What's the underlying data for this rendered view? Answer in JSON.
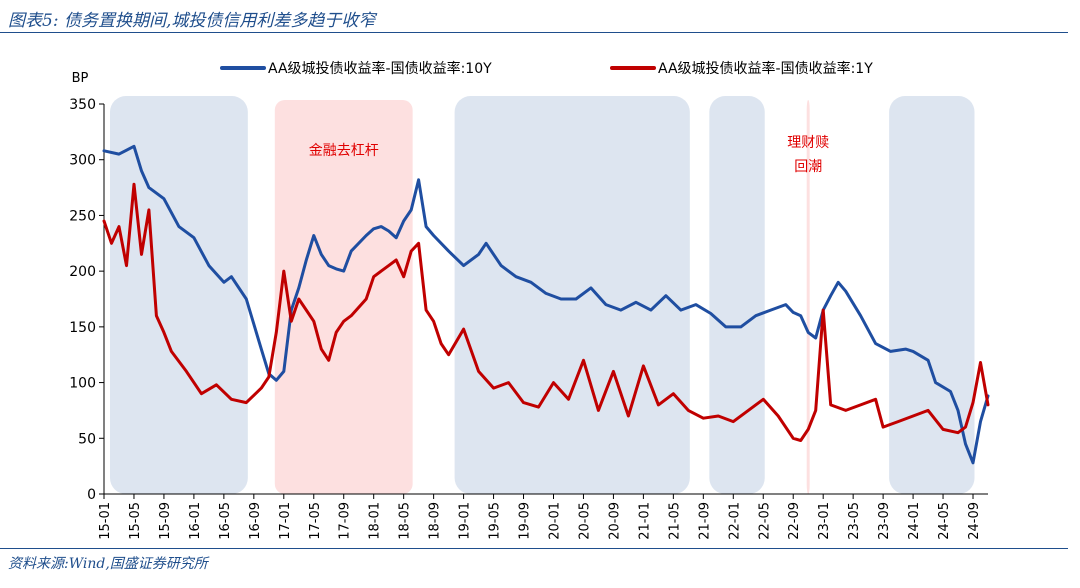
{
  "figure_title": "图表5: 债务置换期间,城投债信用利差多趋于收窄",
  "source": "资料来源:Wind,国盛证券研究所",
  "colors": {
    "series_10y": "#1f4ea1",
    "series_1y": "#c00000",
    "blue_band": "#dde5f0",
    "pink_band": "#fde0e0",
    "annotation": "#e00000",
    "rule": "#1f4e8c"
  },
  "chart_data": {
    "type": "line",
    "ylabel": "BP",
    "ylim": [
      0,
      350
    ],
    "yticks": [
      0,
      50,
      100,
      150,
      200,
      250,
      300,
      350
    ],
    "xlim": [
      "2015-01",
      "2024-11"
    ],
    "xticks": [
      "15-01",
      "15-05",
      "15-09",
      "16-01",
      "16-05",
      "16-09",
      "17-01",
      "17-05",
      "17-09",
      "18-01",
      "18-05",
      "18-09",
      "19-01",
      "19-05",
      "19-09",
      "20-01",
      "20-05",
      "20-09",
      "21-01",
      "21-05",
      "21-09",
      "22-01",
      "22-05",
      "22-09",
      "23-01",
      "23-05",
      "23-09",
      "24-01",
      "24-05",
      "24-09"
    ],
    "legend_position": "top",
    "shaded_periods": [
      {
        "start": "2015-01",
        "end": "2016-09",
        "color": "blue"
      },
      {
        "start": "2016-11",
        "end": "2018-07",
        "color": "pink",
        "label": "金融去杠杆"
      },
      {
        "start": "2018-11",
        "end": "2021-08",
        "color": "blue"
      },
      {
        "start": "2021-09",
        "end": "2022-06",
        "color": "blue"
      },
      {
        "start": "2022-10",
        "end": "2022-12",
        "color": "pink",
        "label": "理财赎回潮"
      },
      {
        "start": "2023-09",
        "end": "2024-10",
        "color": "blue"
      }
    ],
    "series": [
      {
        "name": "AA级城投债收益率-国债收益率:10Y",
        "color": "#1f4ea1",
        "x": [
          "2015-01",
          "2015-03",
          "2015-05",
          "2015-06",
          "2015-07",
          "2015-09",
          "2015-11",
          "2016-01",
          "2016-03",
          "2016-05",
          "2016-06",
          "2016-08",
          "2016-10",
          "2016-11",
          "2016-12",
          "2017-01",
          "2017-02",
          "2017-03",
          "2017-04",
          "2017-05",
          "2017-06",
          "2017-07",
          "2017-08",
          "2017-09",
          "2017-10",
          "2017-12",
          "2018-01",
          "2018-02",
          "2018-03",
          "2018-04",
          "2018-05",
          "2018-06",
          "2018-07",
          "2018-08",
          "2018-09",
          "2018-11",
          "2019-01",
          "2019-03",
          "2019-04",
          "2019-06",
          "2019-08",
          "2019-10",
          "2019-12",
          "2020-02",
          "2020-04",
          "2020-06",
          "2020-08",
          "2020-10",
          "2020-12",
          "2021-02",
          "2021-04",
          "2021-06",
          "2021-08",
          "2021-10",
          "2021-12",
          "2022-02",
          "2022-04",
          "2022-06",
          "2022-08",
          "2022-09",
          "2022-10",
          "2022-11",
          "2022-12",
          "2023-01",
          "2023-02",
          "2023-03",
          "2023-04",
          "2023-06",
          "2023-08",
          "2023-10",
          "2023-12",
          "2024-01",
          "2024-03",
          "2024-04",
          "2024-06",
          "2024-07",
          "2024-08",
          "2024-09",
          "2024-10",
          "2024-11"
        ],
        "values": [
          308,
          305,
          312,
          290,
          275,
          265,
          240,
          230,
          205,
          190,
          195,
          175,
          130,
          108,
          102,
          110,
          165,
          185,
          210,
          232,
          215,
          205,
          202,
          200,
          218,
          232,
          238,
          240,
          236,
          230,
          245,
          255,
          282,
          240,
          232,
          218,
          205,
          215,
          225,
          205,
          195,
          190,
          180,
          175,
          175,
          185,
          170,
          165,
          172,
          165,
          178,
          165,
          170,
          162,
          150,
          150,
          160,
          165,
          170,
          163,
          160,
          145,
          140,
          165,
          178,
          190,
          182,
          160,
          135,
          128,
          130,
          128,
          120,
          100,
          92,
          75,
          45,
          28,
          65,
          88
        ]
      },
      {
        "name": "AA级城投债收益率-国债收益率:1Y",
        "color": "#c00000",
        "x": [
          "2015-01",
          "2015-02",
          "2015-03",
          "2015-04",
          "2015-05",
          "2015-06",
          "2015-07",
          "2015-08",
          "2015-09",
          "2015-10",
          "2015-12",
          "2016-02",
          "2016-04",
          "2016-06",
          "2016-08",
          "2016-10",
          "2016-11",
          "2016-12",
          "2017-01",
          "2017-02",
          "2017-03",
          "2017-04",
          "2017-05",
          "2017-06",
          "2017-07",
          "2017-08",
          "2017-09",
          "2017-10",
          "2017-12",
          "2018-01",
          "2018-02",
          "2018-03",
          "2018-04",
          "2018-05",
          "2018-06",
          "2018-07",
          "2018-08",
          "2018-09",
          "2018-10",
          "2018-11",
          "2019-01",
          "2019-03",
          "2019-05",
          "2019-07",
          "2019-09",
          "2019-11",
          "2020-01",
          "2020-03",
          "2020-05",
          "2020-07",
          "2020-09",
          "2020-11",
          "2021-01",
          "2021-03",
          "2021-05",
          "2021-07",
          "2021-09",
          "2021-11",
          "2022-01",
          "2022-03",
          "2022-05",
          "2022-07",
          "2022-09",
          "2022-10",
          "2022-11",
          "2022-12",
          "2023-01",
          "2023-02",
          "2023-04",
          "2023-06",
          "2023-08",
          "2023-09",
          "2023-11",
          "2024-01",
          "2024-03",
          "2024-05",
          "2024-07",
          "2024-08",
          "2024-09",
          "2024-10",
          "2024-11"
        ],
        "values": [
          245,
          225,
          240,
          205,
          278,
          215,
          255,
          160,
          145,
          128,
          110,
          90,
          98,
          85,
          82,
          95,
          105,
          145,
          200,
          155,
          175,
          165,
          155,
          130,
          120,
          145,
          155,
          160,
          175,
          195,
          200,
          205,
          210,
          195,
          218,
          225,
          165,
          155,
          135,
          125,
          148,
          110,
          95,
          100,
          82,
          78,
          100,
          85,
          120,
          75,
          110,
          70,
          115,
          80,
          90,
          75,
          68,
          70,
          65,
          75,
          85,
          70,
          50,
          48,
          58,
          75,
          165,
          80,
          75,
          80,
          85,
          60,
          65,
          70,
          75,
          58,
          55,
          60,
          82,
          118,
          80
        ]
      }
    ]
  }
}
